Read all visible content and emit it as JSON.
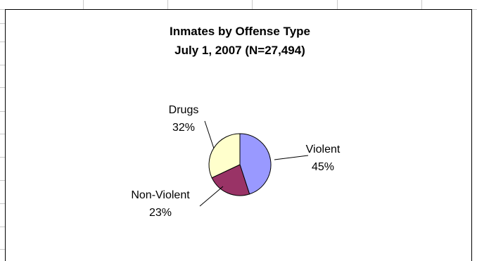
{
  "chart_data": {
    "type": "pie",
    "title": "Inmates by Offense Type",
    "subtitle": "July 1, 2007 (N=27,494)",
    "start_angle_deg": 0,
    "direction": "clockwise",
    "slices": [
      {
        "label": "Violent",
        "percent_label": "45%",
        "value": 45,
        "color": "#9999ff",
        "label_anchor": "right"
      },
      {
        "label": "Non-Violent",
        "percent_label": "23%",
        "value": 23,
        "color": "#993366",
        "label_anchor": "lower-left"
      },
      {
        "label": "Drugs",
        "percent_label": "32%",
        "value": 32,
        "color": "#ffffcc",
        "label_anchor": "upper-left"
      }
    ],
    "slice_border_color": "#000000",
    "leader_line_color": "#000000",
    "legend": "none",
    "grid": false
  }
}
